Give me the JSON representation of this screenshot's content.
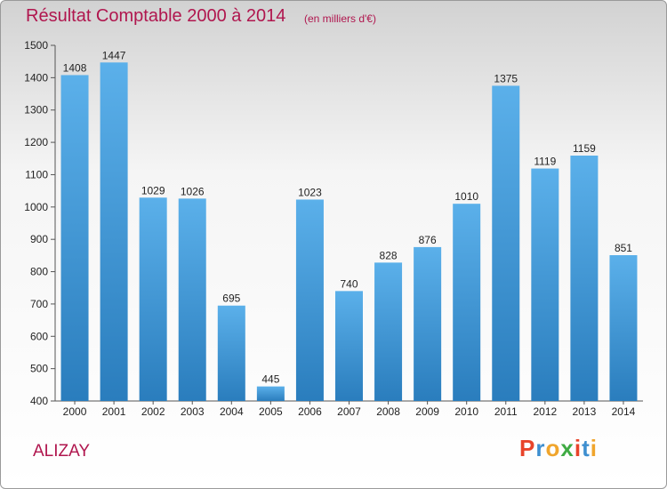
{
  "header": {
    "title": "Résultat Comptable 2000 à 2014",
    "unit": "(en milliers d'€)"
  },
  "footer": {
    "town": "ALIZAY",
    "logo": "Proxiti"
  },
  "colors": {
    "accent": "#b0164e",
    "bar_top": "#5bb0ea",
    "bar_bottom": "#2a7dbd",
    "logo_letters": [
      "#e8442a",
      "#3e8fd0",
      "#f0a52c",
      "#3fab43",
      "#e8442a",
      "#3e8fd0",
      "#f0a52c"
    ]
  },
  "chart_data": {
    "type": "bar",
    "title": "Résultat Comptable 2000 à 2014",
    "xlabel": "",
    "ylabel": "",
    "categories": [
      "2000",
      "2001",
      "2002",
      "2003",
      "2004",
      "2005",
      "2006",
      "2007",
      "2008",
      "2009",
      "2010",
      "2011",
      "2012",
      "2013",
      "2014"
    ],
    "values": [
      1408,
      1447,
      1029,
      1026,
      695,
      445,
      1023,
      740,
      828,
      876,
      1010,
      1375,
      1119,
      1159,
      851
    ],
    "ylim": [
      400,
      1500
    ],
    "yticks": [
      400,
      500,
      600,
      700,
      800,
      900,
      1000,
      1100,
      1200,
      1300,
      1400,
      1500
    ],
    "grid": false,
    "legend": "none"
  }
}
